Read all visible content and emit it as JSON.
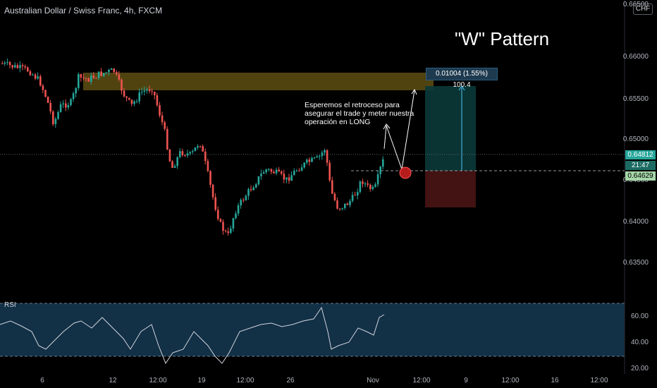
{
  "header": {
    "title": "Australian Dollar / Swiss Franc, 4h, FXCM",
    "currency": "CHF"
  },
  "annotation": {
    "pattern_title": "\"W\" Pattern",
    "note": "Esperemos el retroceso para asegurar el trade y meter nuestra operación en LONG",
    "measure": "0.01004 (1.55%) 100.4"
  },
  "price_axis": [
    "0.66500",
    "0.66000",
    "0.65500",
    "0.65000",
    "0.64500",
    "0.64000",
    "0.63500"
  ],
  "price_tags": {
    "current": "0.64812",
    "countdown": "21:47",
    "entry": "0.64629"
  },
  "rsi": {
    "label": "RSI",
    "axis": [
      "60.00",
      "40.00",
      "20.00"
    ]
  },
  "time_axis": [
    "6",
    "12",
    "12:00",
    "19",
    "12:00",
    "26",
    "Nov",
    "12:00",
    "9",
    "12:00",
    "16",
    "12:00"
  ],
  "colors": {
    "up": "#26a69a",
    "down": "#ef5350",
    "resistance_zone": "#6b5a16",
    "rsi_band": "#123046",
    "target_zone": "#0b3a3a",
    "stop_zone": "#4a1414"
  }
}
